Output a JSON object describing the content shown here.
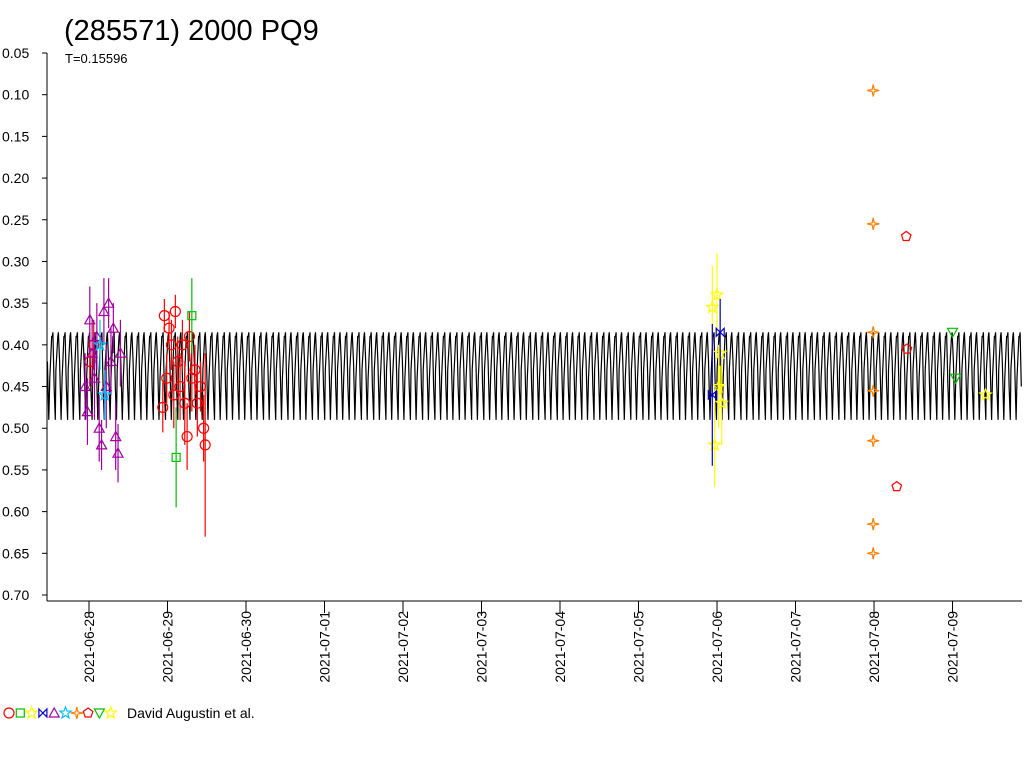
{
  "chart_data": {
    "type": "scatter",
    "title": "(285571) 2000 PQ9",
    "subtitle": "T=0.15596",
    "legend_text": "David Augustin et al.",
    "inverted_y": true,
    "xlim": [
      -0.535,
      11.885
    ],
    "ylim": [
      0.05,
      0.7
    ],
    "xticks": [
      {
        "value": 0,
        "label": "2021-06-28"
      },
      {
        "value": 1,
        "label": "2021-06-29"
      },
      {
        "value": 2,
        "label": "2021-06-30"
      },
      {
        "value": 3,
        "label": "2021-07-01"
      },
      {
        "value": 4,
        "label": "2021-07-02"
      },
      {
        "value": 5,
        "label": "2021-07-03"
      },
      {
        "value": 6,
        "label": "2021-07-04"
      },
      {
        "value": 7,
        "label": "2021-07-05"
      },
      {
        "value": 8,
        "label": "2021-07-06"
      },
      {
        "value": 9,
        "label": "2021-07-07"
      },
      {
        "value": 10,
        "label": "2021-07-08"
      },
      {
        "value": 11,
        "label": "2021-07-09"
      }
    ],
    "yticks": [
      {
        "value": 0.05,
        "label": "0.05"
      },
      {
        "value": 0.1,
        "label": "0.10"
      },
      {
        "value": 0.15,
        "label": "0.15"
      },
      {
        "value": 0.2,
        "label": "0.20"
      },
      {
        "value": 0.25,
        "label": "0.25"
      },
      {
        "value": 0.3,
        "label": "0.30"
      },
      {
        "value": 0.35,
        "label": "0.35"
      },
      {
        "value": 0.4,
        "label": "0.40"
      },
      {
        "value": 0.45,
        "label": "0.45"
      },
      {
        "value": 0.5,
        "label": "0.50"
      },
      {
        "value": 0.55,
        "label": "0.55"
      },
      {
        "value": 0.6,
        "label": "0.60"
      },
      {
        "value": 0.65,
        "label": "0.65"
      },
      {
        "value": 0.7,
        "label": "0.70"
      }
    ],
    "model": {
      "color": "#000000",
      "period": 0.15596,
      "phase": [
        0,
        0.05,
        0.15,
        0.25,
        0.3,
        0.45,
        0.5,
        0.6,
        0.72,
        0.8,
        0.95
      ],
      "values": [
        0.39,
        0.385,
        0.45,
        0.49,
        0.43,
        0.39,
        0.385,
        0.42,
        0.49,
        0.44,
        0.39
      ]
    },
    "series": [
      {
        "color": "#ff0000",
        "marker": "circle",
        "x": [
          0.01,
          0.06,
          0.94,
          0.96,
          0.99,
          1.02,
          1.05,
          1.08,
          1.1,
          1.13,
          1.16,
          1.19,
          1.22,
          1.25,
          1.28,
          1.31,
          1.35,
          1.38,
          1.42,
          1.46,
          1.48
        ],
        "values": [
          0.42,
          0.4,
          0.475,
          0.365,
          0.44,
          0.38,
          0.4,
          0.46,
          0.36,
          0.42,
          0.45,
          0.4,
          0.47,
          0.51,
          0.39,
          0.44,
          0.43,
          0.47,
          0.45,
          0.5,
          0.52
        ],
        "errors": [
          0.03,
          0.03,
          0.03,
          0.02,
          0.03,
          0.02,
          0.03,
          0.04,
          0.02,
          0.03,
          0.04,
          0.03,
          0.05,
          0.04,
          0.03,
          0.04,
          0.03,
          0.04,
          0.03,
          0.04,
          0.11
        ]
      },
      {
        "color": "#00c000",
        "marker": "square",
        "x": [
          1.11,
          1.31
        ],
        "values": [
          0.535,
          0.365
        ],
        "errors": [
          0.06,
          0.045
        ]
      },
      {
        "color": "#ffff00",
        "marker": "star",
        "x": [
          7.94,
          7.97,
          8.0,
          8.02,
          8.04,
          8.06
        ],
        "values": [
          0.355,
          0.52,
          0.34,
          0.45,
          0.41,
          0.47
        ],
        "errors": [
          0.05,
          0.05,
          0.05,
          0.05,
          0.05,
          0.05
        ]
      },
      {
        "color": "#0000c0",
        "marker": "bowtie",
        "x": [
          7.94,
          8.04
        ],
        "values": [
          0.46,
          0.385
        ],
        "errors": [
          0.085,
          0.04
        ]
      },
      {
        "color": "#a000a0",
        "marker": "triangle",
        "x": [
          -0.05,
          -0.02,
          0.01,
          0.04,
          0.07,
          0.1,
          0.13,
          0.16,
          0.19,
          0.22,
          0.25,
          0.28,
          0.31,
          0.34,
          0.37,
          0.4
        ],
        "values": [
          0.45,
          0.48,
          0.37,
          0.41,
          0.44,
          0.39,
          0.5,
          0.52,
          0.36,
          0.45,
          0.35,
          0.42,
          0.38,
          0.51,
          0.53,
          0.41
        ],
        "errors": [
          0.04,
          0.04,
          0.04,
          0.04,
          0.05,
          0.04,
          0.04,
          0.03,
          0.04,
          0.05,
          0.03,
          0.04,
          0.03,
          0.04,
          0.035,
          0.04
        ]
      },
      {
        "color": "#00c0ff",
        "marker": "star",
        "x": [
          0.14,
          0.2
        ],
        "values": [
          0.4,
          0.46
        ],
        "errors": [
          0.03,
          0.03
        ]
      },
      {
        "color": "#ff8000",
        "marker": "star4",
        "x": [
          9.99,
          9.99,
          9.99,
          9.99,
          9.99,
          9.99,
          9.99
        ],
        "values": [
          0.095,
          0.255,
          0.385,
          0.455,
          0.515,
          0.615,
          0.65
        ],
        "errors": [
          0,
          0,
          0,
          0,
          0,
          0,
          0
        ]
      },
      {
        "color": "#ff0000",
        "marker": "pentagon",
        "x": [
          10.29,
          10.41,
          10.42
        ],
        "values": [
          0.57,
          0.27,
          0.405
        ],
        "errors": [
          0,
          0,
          0
        ]
      },
      {
        "color": "#00c000",
        "marker": "tridown",
        "x": [
          11.0,
          11.04
        ],
        "values": [
          0.385,
          0.44
        ],
        "errors": [
          0,
          0
        ]
      },
      {
        "color": "#ffff00",
        "marker": "star",
        "x": [
          11.42
        ],
        "values": [
          0.46
        ],
        "errors": [
          0
        ]
      }
    ]
  }
}
